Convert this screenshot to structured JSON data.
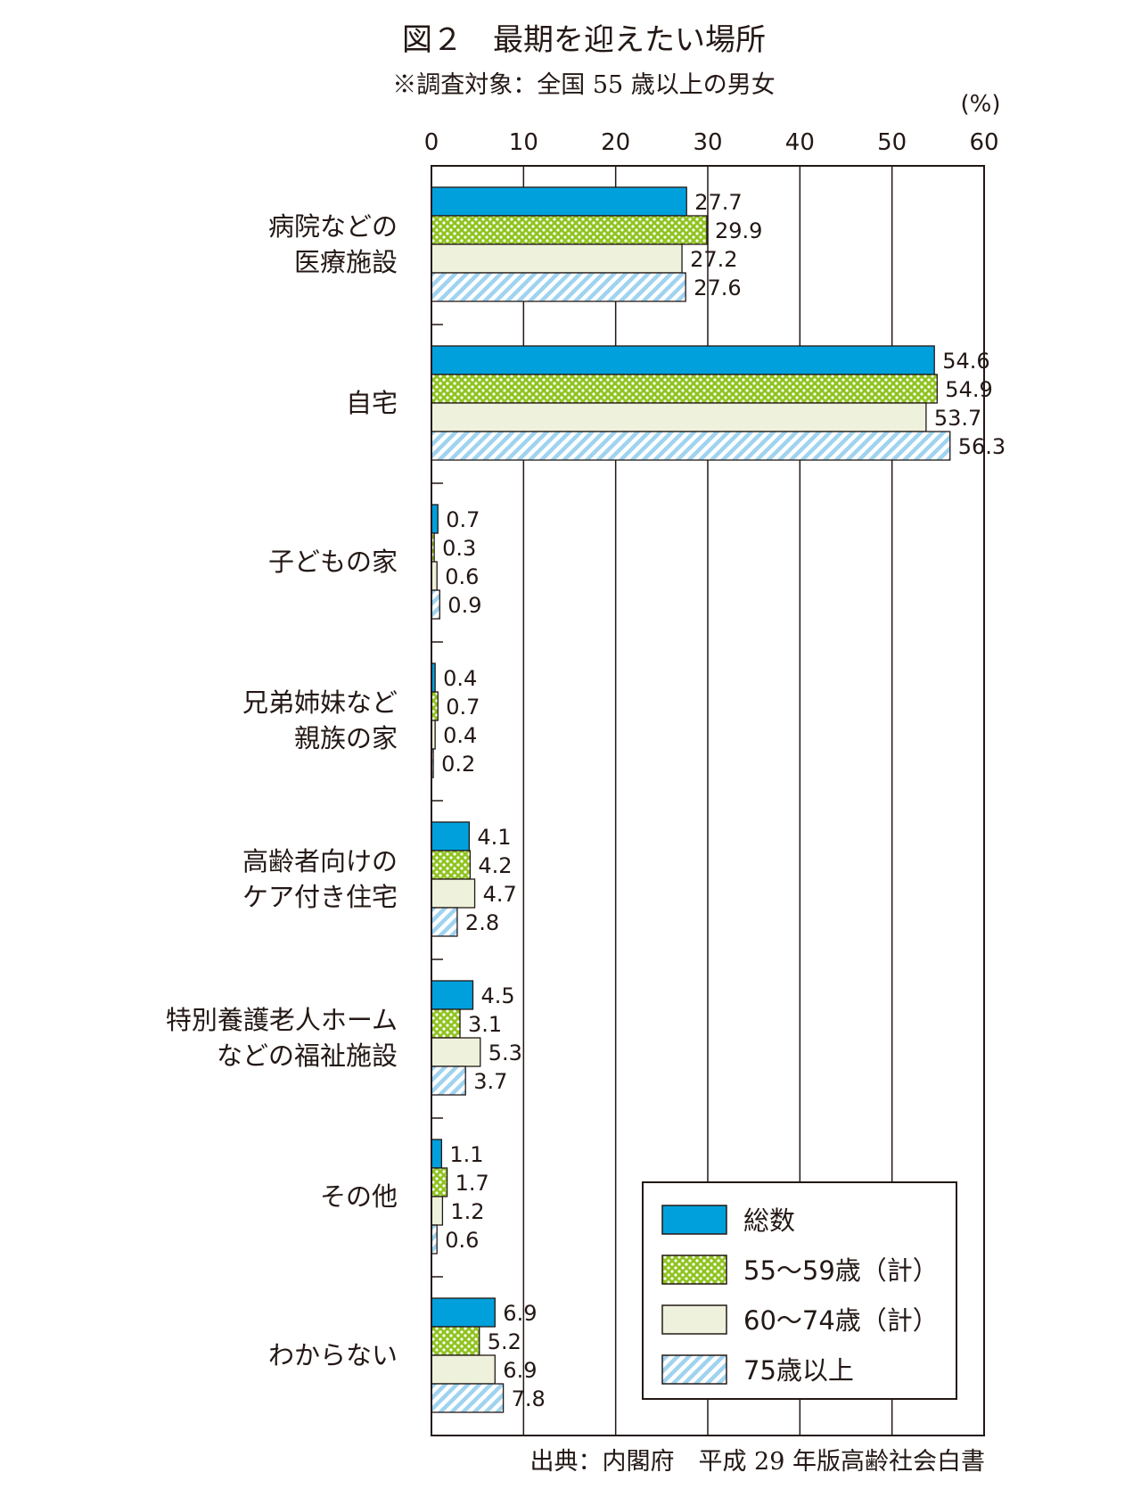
{
  "chart_data": {
    "type": "bar",
    "orientation": "horizontal",
    "title": "図２　最期を迎えたい場所",
    "subtitle": "※調査対象：全国 55 歳以上の男女",
    "unit_label": "(%)",
    "source": "出典：内閣府　平成 29 年版高齢社会白書",
    "xlim": [
      0,
      60
    ],
    "xticks": [
      "0",
      "10",
      "20",
      "30",
      "40",
      "50",
      "60"
    ],
    "grid": true,
    "legend_position": "bottom-right",
    "categories": [
      [
        "病院などの",
        "医療施設"
      ],
      [
        "自宅"
      ],
      [
        "子どもの家"
      ],
      [
        "兄弟姉妹など",
        "親族の家"
      ],
      [
        "高齢者向けの",
        "ケア付き住宅"
      ],
      [
        "特別養護老人ホーム",
        "などの福祉施設"
      ],
      [
        "その他"
      ],
      [
        "わからない"
      ]
    ],
    "series": [
      {
        "name": "総数",
        "pattern": "solid",
        "color": "#00a0dc",
        "values": [
          27.7,
          54.6,
          0.7,
          0.4,
          4.1,
          4.5,
          1.1,
          6.9
        ],
        "labels": [
          "27.7",
          "54.6",
          "0.7",
          "0.4",
          "4.1",
          "4.5",
          "1.1",
          "6.9"
        ]
      },
      {
        "name": "55〜59歳（計）",
        "pattern": "dots",
        "color": "#8fc31f",
        "values": [
          29.9,
          54.9,
          0.3,
          0.7,
          4.2,
          3.1,
          1.7,
          5.2
        ],
        "labels": [
          "29.9",
          "54.9",
          "0.3",
          "0.7",
          "4.2",
          "3.1",
          "1.7",
          "5.2"
        ]
      },
      {
        "name": "60〜74歳（計）",
        "pattern": "solid",
        "color": "#eef2dc",
        "values": [
          27.2,
          53.7,
          0.6,
          0.4,
          4.7,
          5.3,
          1.2,
          6.9
        ],
        "labels": [
          "27.2",
          "53.7",
          "0.6",
          "0.4",
          "4.7",
          "5.3",
          "1.2",
          "6.9"
        ]
      },
      {
        "name": "75歳以上",
        "pattern": "hatch",
        "color": "#9fd3ef",
        "values": [
          27.6,
          56.3,
          0.9,
          0.2,
          2.8,
          3.7,
          0.6,
          7.8
        ],
        "labels": [
          "27.6",
          "56.3",
          "0.9",
          "0.2",
          "2.8",
          "3.7",
          "0.6",
          "7.8"
        ]
      }
    ]
  }
}
